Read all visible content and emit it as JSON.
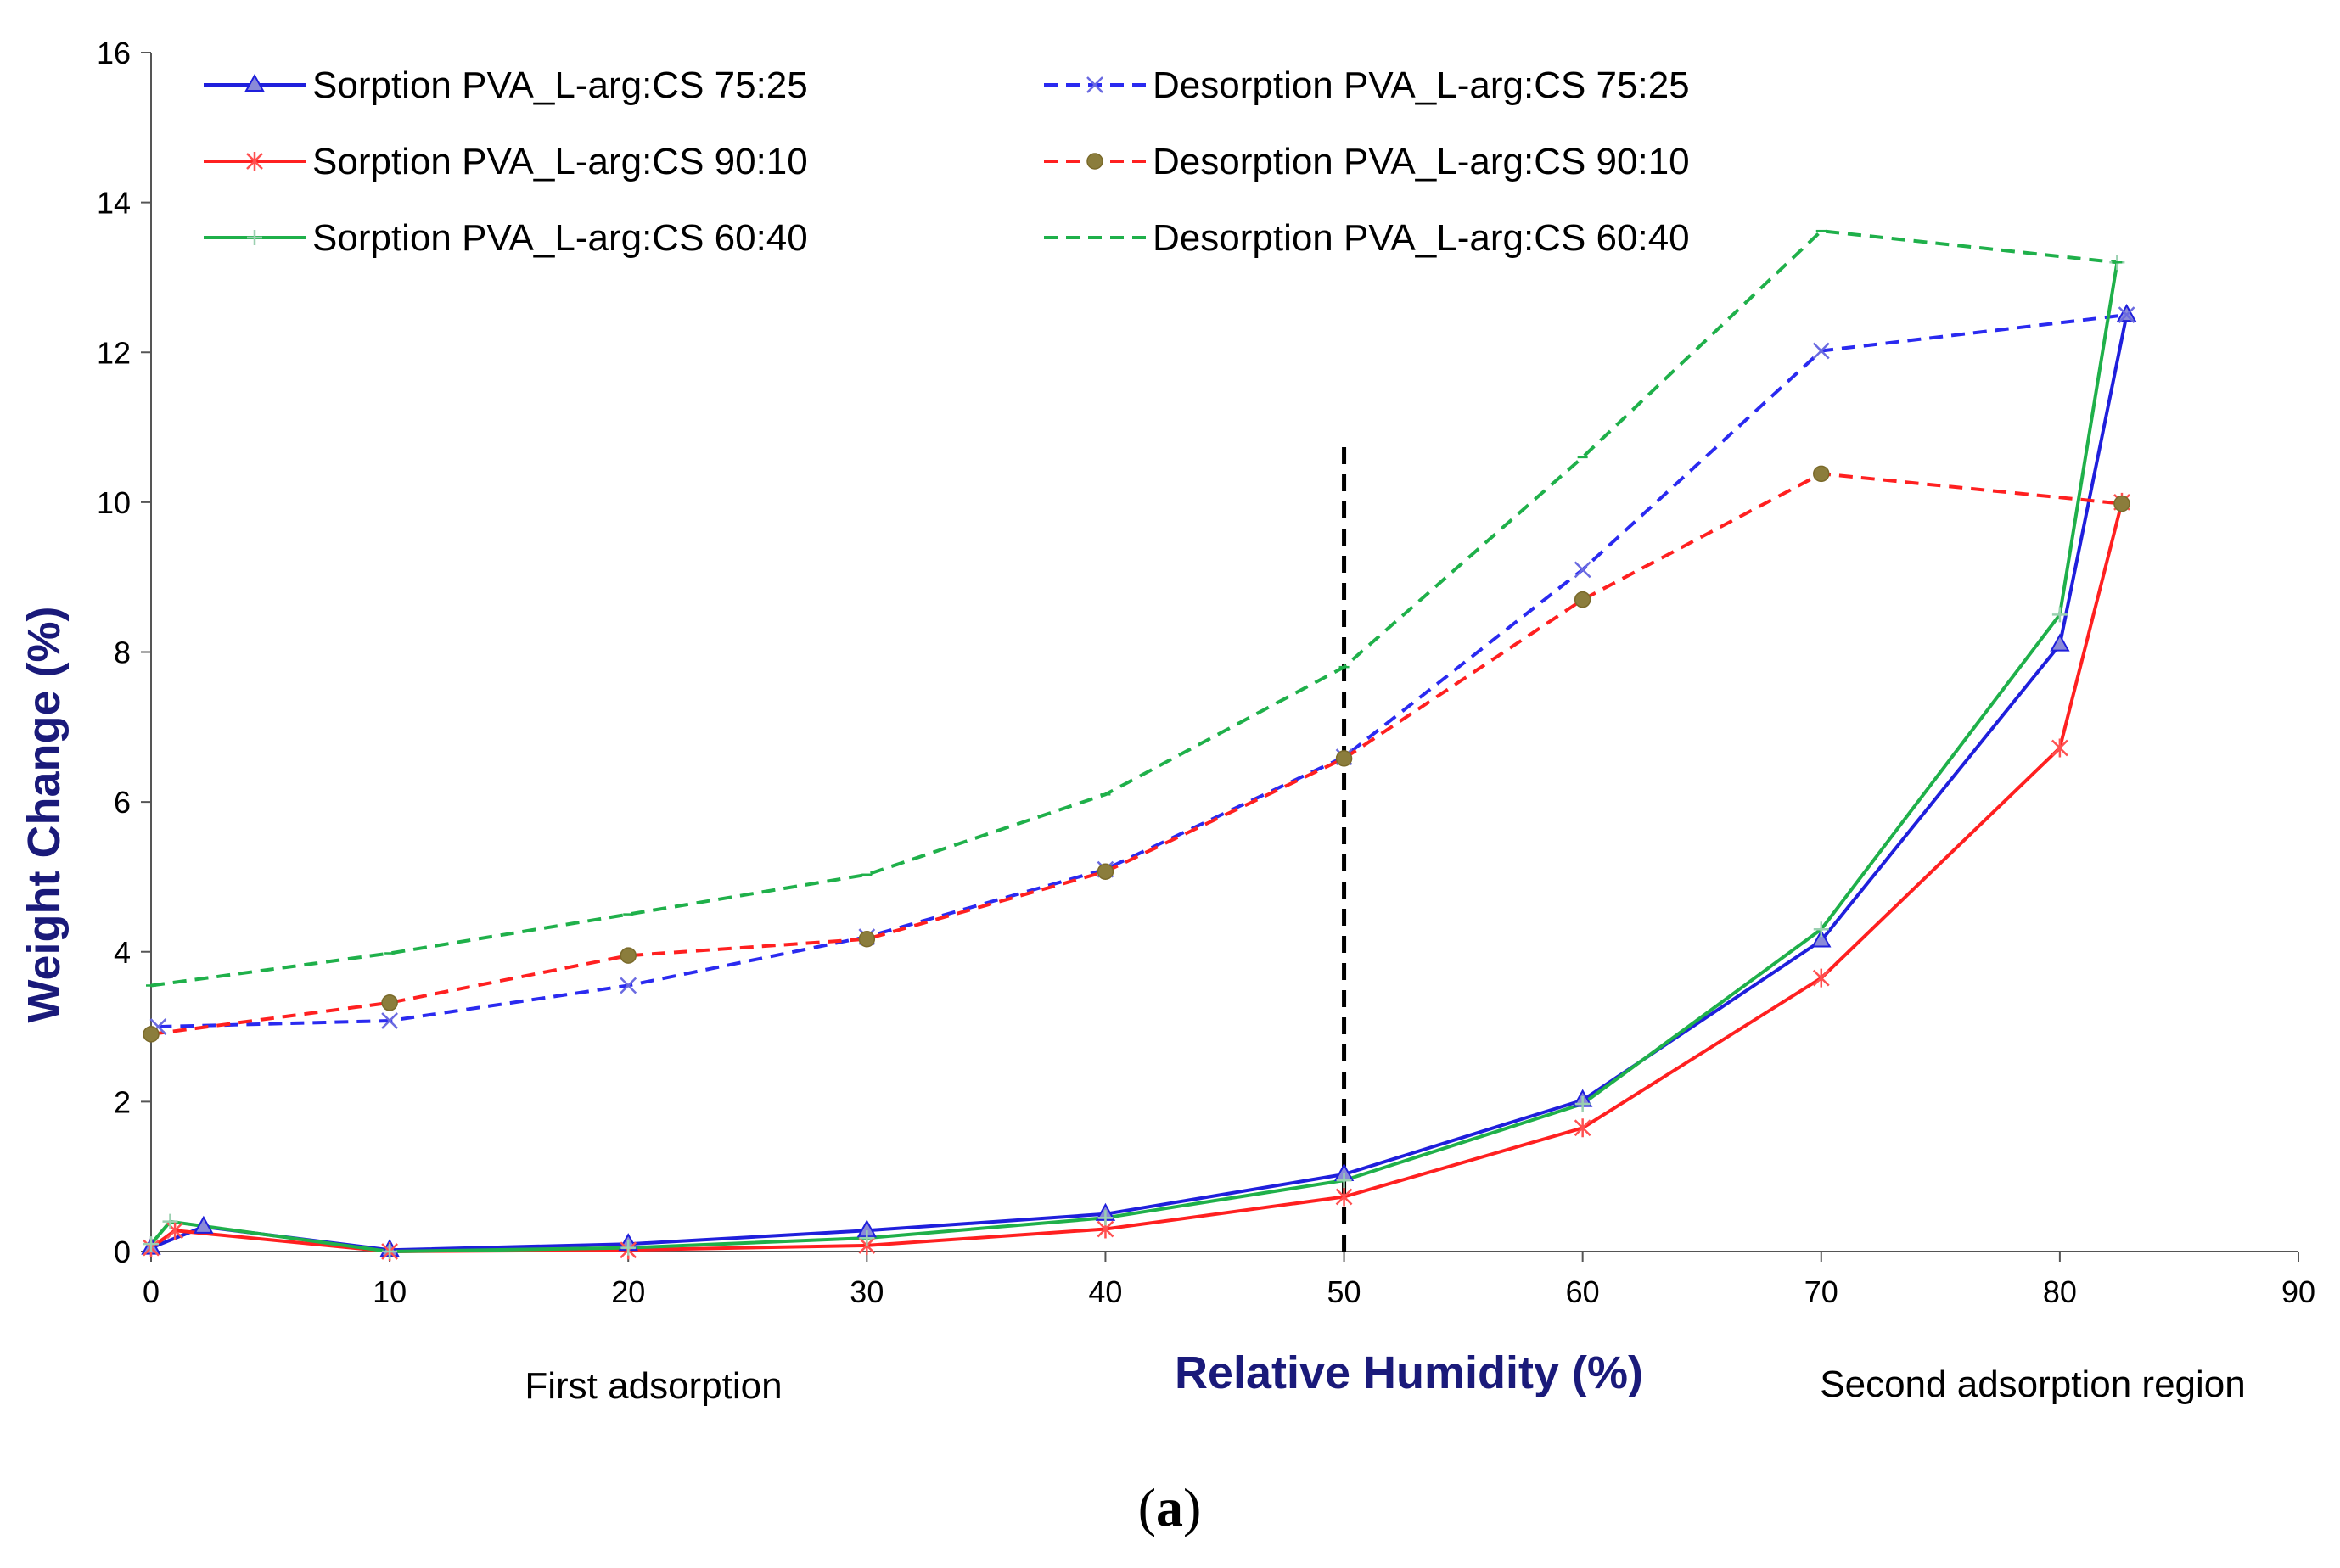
{
  "chart_data": {
    "type": "line",
    "title": "",
    "xlabel": "Relative Humidity (%)",
    "ylabel": "Weight Change (%)",
    "xlim": [
      0,
      90
    ],
    "ylim": [
      0,
      16
    ],
    "xticks": [
      0,
      10,
      20,
      30,
      40,
      50,
      60,
      70,
      80,
      90
    ],
    "yticks": [
      0,
      2,
      4,
      6,
      8,
      10,
      12,
      14,
      16
    ],
    "grid": false,
    "legend_position": "top-left",
    "vertical_reference_line": {
      "x": 50,
      "y_top": 10.85,
      "style": "dashed",
      "color": "#000000"
    },
    "region_labels": {
      "left": "First adsorption",
      "right": "Second adsorption region"
    },
    "panel_label": {
      "open": "(",
      "letter": "a",
      "close": ")"
    },
    "series": [
      {
        "name": "Sorption PVA_L-arg:CS 75:25",
        "color": "#1f1fdc",
        "dash": "solid",
        "marker": "triangle",
        "x": [
          0,
          2.2,
          10,
          20,
          30,
          40,
          50,
          60,
          70,
          80,
          82.8
        ],
        "y": [
          0.05,
          0.33,
          0.02,
          0.1,
          0.28,
          0.5,
          1.03,
          2.02,
          4.15,
          8.1,
          12.5
        ]
      },
      {
        "name": "Desorption PVA_L-arg:CS 75:25",
        "color": "#2a2af0",
        "dash": "dashed",
        "marker": "x",
        "x": [
          0.3,
          10,
          20,
          30,
          40,
          50,
          60,
          70,
          82.8
        ],
        "y": [
          3.0,
          3.08,
          3.55,
          4.2,
          5.1,
          6.6,
          9.1,
          12.02,
          12.5
        ]
      },
      {
        "name": "Sorption PVA_L-arg:CS 90:10",
        "color": "#ff2020",
        "dash": "solid",
        "marker": "star",
        "x": [
          0,
          1.0,
          10,
          20,
          30,
          40,
          50,
          60,
          70,
          80,
          82.6
        ],
        "y": [
          0.05,
          0.28,
          0.0,
          0.02,
          0.08,
          0.3,
          0.73,
          1.65,
          3.65,
          6.72,
          10.0
        ]
      },
      {
        "name": "Desorption PVA_L-arg:CS 90:10",
        "color": "#ff2020",
        "dash": "dashed",
        "marker": "circle",
        "x": [
          0,
          10,
          20,
          30,
          40,
          50,
          60,
          70,
          82.6
        ],
        "y": [
          2.9,
          3.32,
          3.95,
          4.17,
          5.07,
          6.58,
          8.7,
          10.38,
          9.98
        ]
      },
      {
        "name": "Sorption PVA_L-arg:CS 60:40",
        "color": "#1fb04a",
        "dash": "solid",
        "marker": "plus",
        "x": [
          0,
          0.8,
          10,
          20,
          30,
          40,
          50,
          60,
          70,
          80,
          82.4
        ],
        "y": [
          0.1,
          0.4,
          0.0,
          0.05,
          0.18,
          0.45,
          0.95,
          1.97,
          4.3,
          8.5,
          13.2
        ]
      },
      {
        "name": "Desorption PVA_L-arg:CS 60:40",
        "color": "#1fb04a",
        "dash": "dashed",
        "marker": "dash",
        "x": [
          0,
          10,
          20,
          30,
          40,
          50,
          60,
          70,
          82.4
        ],
        "y": [
          3.55,
          3.98,
          4.5,
          5.03,
          6.1,
          7.8,
          10.6,
          13.62,
          13.2
        ]
      }
    ]
  }
}
